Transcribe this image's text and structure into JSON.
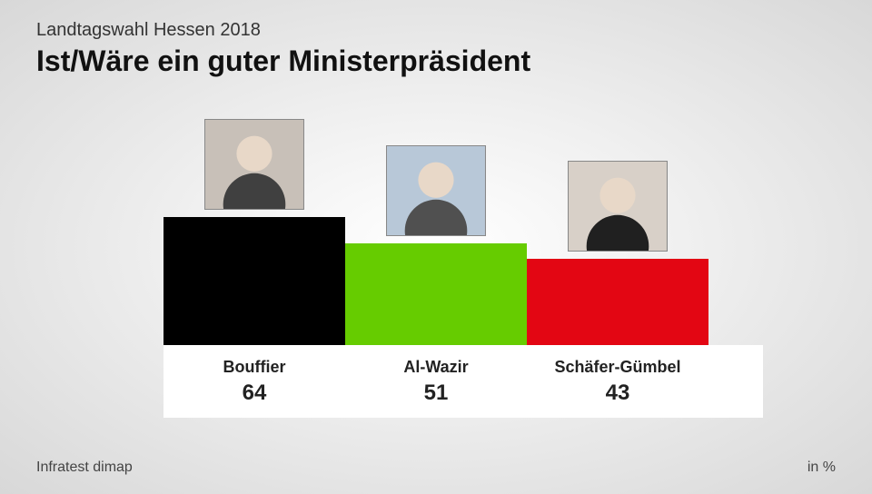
{
  "header": {
    "subtitle": "Landtagswahl Hessen 2018",
    "title": "Ist/Wäre ein guter Ministerpräsident"
  },
  "chart": {
    "type": "bar",
    "unit": "in %",
    "max_value": 100,
    "bar_height_scale": 2.2,
    "bars": [
      {
        "name": "Bouffier",
        "value": 64,
        "color": "#000000",
        "photo_placeholder": "portrait"
      },
      {
        "name": "Al-Wazir",
        "value": 51,
        "color": "#66cc00",
        "photo_placeholder": "portrait"
      },
      {
        "name": "Schäfer-Gümbel",
        "value": 43,
        "color": "#e30613",
        "photo_placeholder": "portrait"
      }
    ],
    "label_bg": "#ffffff",
    "label_text_color": "#222222",
    "name_fontsize": 18,
    "value_fontsize": 24
  },
  "footer": {
    "source": "Infratest dimap",
    "unit_label": "in %"
  },
  "background": {
    "gradient_inner": "#ffffff",
    "gradient_outer": "#d8d8d8"
  }
}
